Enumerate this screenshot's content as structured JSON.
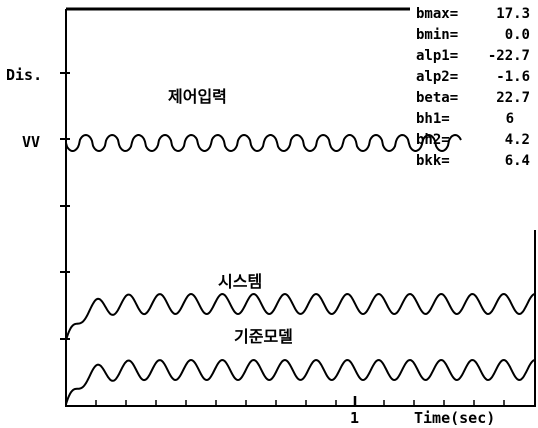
{
  "chart_data": {
    "type": "line",
    "title": "",
    "xlabel": "Time(sec)",
    "ylabel": "Dis.",
    "x_ticks": [
      "1"
    ],
    "y_marker_label": "VV",
    "grid": false,
    "xlim": [
      0,
      1.6
    ],
    "series": [
      {
        "name": "제어입력",
        "kind": "square-ish wave",
        "level": "VV",
        "cycles": 15,
        "start_time": 0.0,
        "end_time": 1.35
      },
      {
        "name": "시스템",
        "kind": "sine",
        "cycles": 15,
        "rise_from": "zero",
        "start_time": 0.0,
        "end_time": 1.6
      },
      {
        "name": "기준모델",
        "kind": "sine",
        "cycles": 15,
        "rise_from": "zero",
        "start_time": 0.0,
        "end_time": 1.6
      }
    ],
    "parameters": [
      {
        "name": "bmax=",
        "value": "17.3"
      },
      {
        "name": "bmin=",
        "value": "0.0"
      },
      {
        "name": "alp1=",
        "value": "-22.7"
      },
      {
        "name": "alp2=",
        "value": "-1.6"
      },
      {
        "name": "beta=",
        "value": "22.7"
      },
      {
        "name": "bh1=",
        "value": "6"
      },
      {
        "name": "bh2=",
        "value": "4.2"
      },
      {
        "name": "bkk=",
        "value": "6.4"
      }
    ]
  }
}
